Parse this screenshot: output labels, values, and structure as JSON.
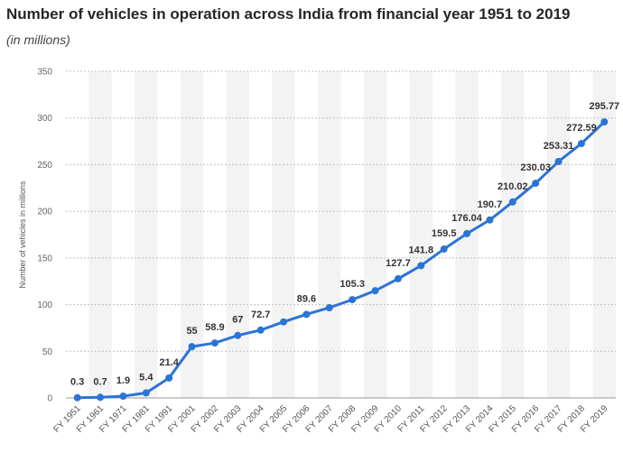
{
  "header": {
    "title": "Number of vehicles in operation across India from financial year 1951 to 2019",
    "subtitle": "(in millions)"
  },
  "colors": {
    "line": "#2b74d6",
    "band": "#f3f3f3",
    "grid": "#bfbfbf"
  },
  "chart_data": {
    "type": "line",
    "title": "Number of vehicles in operation across India from financial year 1951 to 2019",
    "subtitle": "(in millions)",
    "ylabel": "Number of vehicles in millions",
    "xlabel": "",
    "ylim": [
      0,
      350
    ],
    "yticks": [
      0,
      50,
      100,
      150,
      200,
      250,
      300,
      350
    ],
    "grid": true,
    "categories": [
      "FY 1951",
      "FY 1961",
      "FY 1971",
      "FY 1981",
      "FY 1991",
      "FY 2001",
      "FY 2002",
      "FY 2003",
      "FY 2004",
      "FY 2005",
      "FY 2006",
      "FY 2007",
      "FY 2008",
      "FY 2009",
      "FY 2010",
      "FY 2011",
      "FY 2012",
      "FY 2013",
      "FY 2014",
      "FY 2015",
      "FY 2016",
      "FY 2017",
      "FY 2018",
      "FY 2019"
    ],
    "values": [
      0.3,
      0.7,
      1.9,
      5.4,
      21.4,
      55,
      58.9,
      67,
      72.7,
      81.5,
      89.6,
      96.7,
      105.3,
      114.9,
      127.7,
      141.8,
      159.5,
      176.04,
      190.7,
      210.02,
      230.03,
      253.31,
      272.59,
      295.77
    ],
    "data_labels": [
      "0.3",
      "0.7",
      "1.9",
      "5.4",
      "21.4",
      "55",
      "58.9",
      "67",
      "72.7",
      "",
      "89.6",
      "",
      "105.3",
      "",
      "127.7",
      "141.8",
      "159.5",
      "176.04",
      "190.7",
      "210.02",
      "230.03",
      "253.31",
      "272.59",
      "295.77"
    ]
  }
}
